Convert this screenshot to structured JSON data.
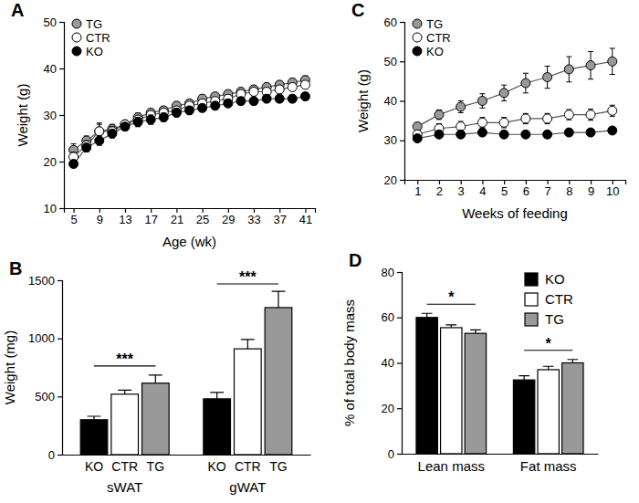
{
  "chart_data": [
    {
      "type": "line",
      "title": "A",
      "x_label": "Age (wk)",
      "y_label": "Weight (g)",
      "x": [
        5,
        7,
        9,
        11,
        13,
        15,
        17,
        19,
        21,
        23,
        25,
        27,
        29,
        31,
        33,
        35,
        37,
        39,
        41
      ],
      "xlim": [
        3.5,
        42.5
      ],
      "xticks": [
        5,
        9,
        13,
        17,
        21,
        25,
        29,
        33,
        37,
        41
      ],
      "ylim": [
        10,
        50
      ],
      "yticks": [
        10,
        20,
        30,
        40,
        50
      ],
      "grid": false,
      "legend": "top-left",
      "series": [
        {
          "name": "TG",
          "color": "#999999",
          "marker": "circle",
          "values": [
            22.5,
            24.5,
            26.5,
            27,
            28,
            29.5,
            30.5,
            31,
            32,
            32.5,
            33.5,
            34,
            34.5,
            35,
            35.5,
            36,
            36.5,
            37,
            37.5
          ],
          "errors": [
            1.3,
            1.0,
            1.5,
            1.0,
            0.9,
            0.9,
            0.8,
            0.8,
            0.8,
            0.8,
            0.8,
            0.8,
            0.8,
            0.8,
            0.8,
            0.8,
            0.8,
            0.8,
            0.9
          ]
        },
        {
          "name": "CTR",
          "color": "#ffffff",
          "marker": "circle",
          "values": [
            21,
            23.5,
            26.5,
            26.5,
            28,
            29,
            30,
            30.5,
            31,
            32,
            32.5,
            33,
            33.5,
            34.5,
            35,
            35,
            35.5,
            36,
            36.5
          ],
          "errors": [
            1.0,
            1.0,
            1.8,
            1.0,
            0.8,
            0.8,
            0.8,
            0.8,
            0.8,
            0.8,
            0.8,
            0.8,
            0.8,
            0.8,
            0.8,
            0.8,
            0.8,
            0.8,
            0.8
          ]
        },
        {
          "name": "KO",
          "color": "#000000",
          "marker": "circle",
          "values": [
            19.5,
            23,
            24.5,
            26,
            27.5,
            28.5,
            29,
            29.5,
            30.5,
            31,
            31.5,
            32,
            32.5,
            33,
            33,
            33.5,
            33.5,
            33.5,
            34
          ],
          "errors": [
            0.8,
            0.9,
            1.0,
            0.9,
            0.8,
            1.0,
            1.0,
            0.9,
            0.9,
            0.8,
            0.8,
            0.8,
            0.8,
            0.8,
            0.8,
            0.8,
            0.8,
            0.8,
            0.8
          ]
        }
      ]
    },
    {
      "type": "bar",
      "title": "B",
      "y_label": "Weight (mg)",
      "categories": [
        "sWAT",
        "gWAT"
      ],
      "ylim": [
        0,
        1500
      ],
      "yticks": [
        0,
        500,
        1000,
        1500
      ],
      "grid": false,
      "annotations": [
        "***",
        "***"
      ],
      "series": [
        {
          "name": "KO",
          "color": "#000000",
          "values": [
            300,
            480
          ],
          "errors": [
            30,
            55
          ]
        },
        {
          "name": "CTR",
          "color": "#ffffff",
          "values": [
            520,
            910
          ],
          "errors": [
            35,
            80
          ]
        },
        {
          "name": "TG",
          "color": "#999999",
          "values": [
            615,
            1265
          ],
          "errors": [
            70,
            140
          ]
        }
      ]
    },
    {
      "type": "line",
      "title": "C",
      "x_label": "Weeks of feeding",
      "y_label": "Weight (g)",
      "x": [
        1,
        2,
        3,
        4,
        5,
        6,
        7,
        8,
        9,
        10
      ],
      "xlim": [
        0.4,
        10.6
      ],
      "xticks": [
        1,
        2,
        3,
        4,
        5,
        6,
        7,
        8,
        9,
        10
      ],
      "ylim": [
        20,
        60
      ],
      "yticks": [
        20,
        30,
        40,
        50,
        60
      ],
      "grid": false,
      "legend": "top-left",
      "series": [
        {
          "name": "TG",
          "color": "#999999",
          "marker": "circle",
          "values": [
            33.5,
            36.5,
            38.5,
            40,
            42,
            44.5,
            46,
            48,
            49,
            50
          ],
          "errors": [
            1.0,
            1.2,
            1.5,
            1.8,
            2.0,
            2.5,
            2.8,
            3.2,
            3.5,
            3.3
          ]
        },
        {
          "name": "CTR",
          "color": "#ffffff",
          "marker": "circle",
          "values": [
            31.5,
            33,
            33.5,
            34.5,
            34.5,
            35.5,
            35.5,
            36.5,
            36.5,
            37.5
          ],
          "errors": [
            1.0,
            1.2,
            1.3,
            1.3,
            1.3,
            1.3,
            1.3,
            1.3,
            1.4,
            1.4
          ]
        },
        {
          "name": "KO",
          "color": "#000000",
          "marker": "circle",
          "values": [
            30.5,
            31.5,
            31.5,
            32,
            31.5,
            31.5,
            31.5,
            32,
            32,
            32.5
          ],
          "errors": [
            0.8,
            0.8,
            0.8,
            0.8,
            0.8,
            0.8,
            0.8,
            0.8,
            0.8,
            0.8
          ]
        }
      ]
    },
    {
      "type": "bar",
      "title": "D",
      "y_label": "% of total body mass",
      "categories": [
        "Lean mass",
        "Fat mass"
      ],
      "ylim": [
        0,
        80
      ],
      "yticks": [
        0,
        20,
        40,
        60,
        80
      ],
      "grid": false,
      "legend": "top-right",
      "annotations": [
        "*",
        "*"
      ],
      "series": [
        {
          "name": "KO",
          "color": "#000000",
          "values": [
            60,
            32.5
          ],
          "errors": [
            1.8,
            1.8
          ]
        },
        {
          "name": "CTR",
          "color": "#ffffff",
          "values": [
            55.5,
            37
          ],
          "errors": [
            1.2,
            1.5
          ]
        },
        {
          "name": "TG",
          "color": "#999999",
          "values": [
            53,
            40
          ],
          "errors": [
            1.5,
            1.5
          ]
        }
      ]
    }
  ]
}
